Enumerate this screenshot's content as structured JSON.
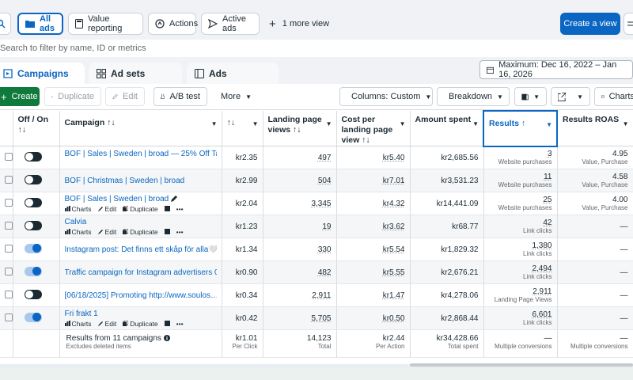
{
  "topbar": {
    "views": [
      {
        "label": "All ads",
        "icon": "folder-icon",
        "active": true
      },
      {
        "label": "Value reporting",
        "icon": "calculator-icon"
      },
      {
        "label": "Actions",
        "icon": "actions-icon"
      },
      {
        "label": "Active ads",
        "icon": "send-icon"
      }
    ],
    "more_views": "1 more view",
    "create_view": "Create a view"
  },
  "search": {
    "placeholder": "Search to filter by name, ID or metrics"
  },
  "tabs": [
    {
      "label": "Campaigns",
      "icon": "campaign-icon",
      "active": true
    },
    {
      "label": "Ad sets",
      "icon": "grid-icon"
    },
    {
      "label": "Ads",
      "icon": "ad-icon"
    }
  ],
  "date_range": "Maximum: Dec 16, 2022 – Jan 16, 2026",
  "toolbar": {
    "create": "Create",
    "duplicate": "Duplicate",
    "edit": "Edit",
    "ab_test": "A/B test",
    "more": "More",
    "columns": "Columns: Custom",
    "breakdown": "Breakdown",
    "charts": "Charts"
  },
  "table": {
    "headers": {
      "onoff": "Off / On",
      "onoff_sort": "↑↓",
      "campaign": "Campaign ↑↓",
      "prev_sort": "↑↓",
      "landing": "Landing page views ↑↓",
      "cost_landing": "Cost per landing page view ↑↓",
      "amount": "Amount spent",
      "results": "Results ↑",
      "roas": "Results ROAS"
    },
    "row_actions": {
      "charts": "Charts",
      "edit": "Edit",
      "duplicate": "Duplicate",
      "more": "•••"
    },
    "rows": [
      {
        "name": "BOF | Sales | Sweden | broad — 25% Off Tabl…",
        "on": false,
        "prev": "kr2.35",
        "landing": "497",
        "cost_landing": "kr5.40",
        "amount": "kr2,685.56",
        "results": "3",
        "results_sub": "Website purchases",
        "roas": "4.95",
        "roas_sub": "Value, Purchase",
        "show_actions": false,
        "top": true
      },
      {
        "name": "BOF | Christmas | Sweden | broad",
        "on": false,
        "prev": "kr2.99",
        "landing": "504",
        "cost_landing": "kr7.01",
        "amount": "kr3,531.23",
        "results": "11",
        "results_sub": "Website purchases",
        "roas": "4.58",
        "roas_sub": "Value, Purchase",
        "show_actions": false
      },
      {
        "name": "BOF | Sales | Sweden | broad",
        "on": false,
        "prev": "kr2.04",
        "landing": "3,345",
        "cost_landing": "kr4.32",
        "amount": "kr14,441.09",
        "results": "25",
        "results_sub": "Website purchases",
        "roas": "4.00",
        "roas_sub": "Value, Purchase",
        "show_actions": true
      },
      {
        "name": "Calvia",
        "on": false,
        "prev": "kr1.23",
        "landing": "19",
        "cost_landing": "kr3.62",
        "amount": "kr68.77",
        "results": "42",
        "results_sub": "Link clicks",
        "roas": "—",
        "roas_sub": "",
        "show_actions": true
      },
      {
        "name": "Instagram post: Det finns ett skåp för alla🤍 V…",
        "on": true,
        "prev": "kr1.34",
        "landing": "330",
        "cost_landing": "kr5.54",
        "amount": "kr1,829.32",
        "results": "1,380",
        "results_sub": "Link clicks",
        "roas": "—",
        "roas_sub": "",
        "show_actions": false
      },
      {
        "name": "Traffic campaign for Instagram advertisers 0…",
        "on": true,
        "prev": "kr0.90",
        "landing": "482",
        "cost_landing": "kr5.55",
        "amount": "kr2,676.21",
        "results": "2,494",
        "results_sub": "Link clicks",
        "roas": "—",
        "roas_sub": "",
        "show_actions": false
      },
      {
        "name": "[06/18/2025] Promoting http://www.soulos…",
        "on": false,
        "prev": "kr0.34",
        "landing": "2,911",
        "cost_landing": "kr1.47",
        "amount": "kr4,278.06",
        "results": "2,911",
        "results_sub": "Landing Page Views",
        "roas": "—",
        "roas_sub": "",
        "show_actions": false
      },
      {
        "name": "Fri frakt 1",
        "on": true,
        "prev": "kr0.42",
        "landing": "5,705",
        "cost_landing": "kr0.50",
        "amount": "kr2,868.44",
        "results": "6,601",
        "results_sub": "Link clicks",
        "roas": "—",
        "roas_sub": "",
        "show_actions": true
      }
    ],
    "total": {
      "label": "Results from 11 campaigns",
      "sub": "Excludes deleted items",
      "prev": "kr1.01",
      "prev_sub": "Per Click",
      "landing": "14,123",
      "landing_sub": "Total",
      "cost_landing": "kr2.44",
      "cost_landing_sub": "Per Action",
      "amount": "kr34,428.66",
      "amount_sub": "Total spent",
      "results": "—",
      "results_sub": "Multiple conversions",
      "roas": "—",
      "roas_sub": "Multiple conversions"
    }
  }
}
